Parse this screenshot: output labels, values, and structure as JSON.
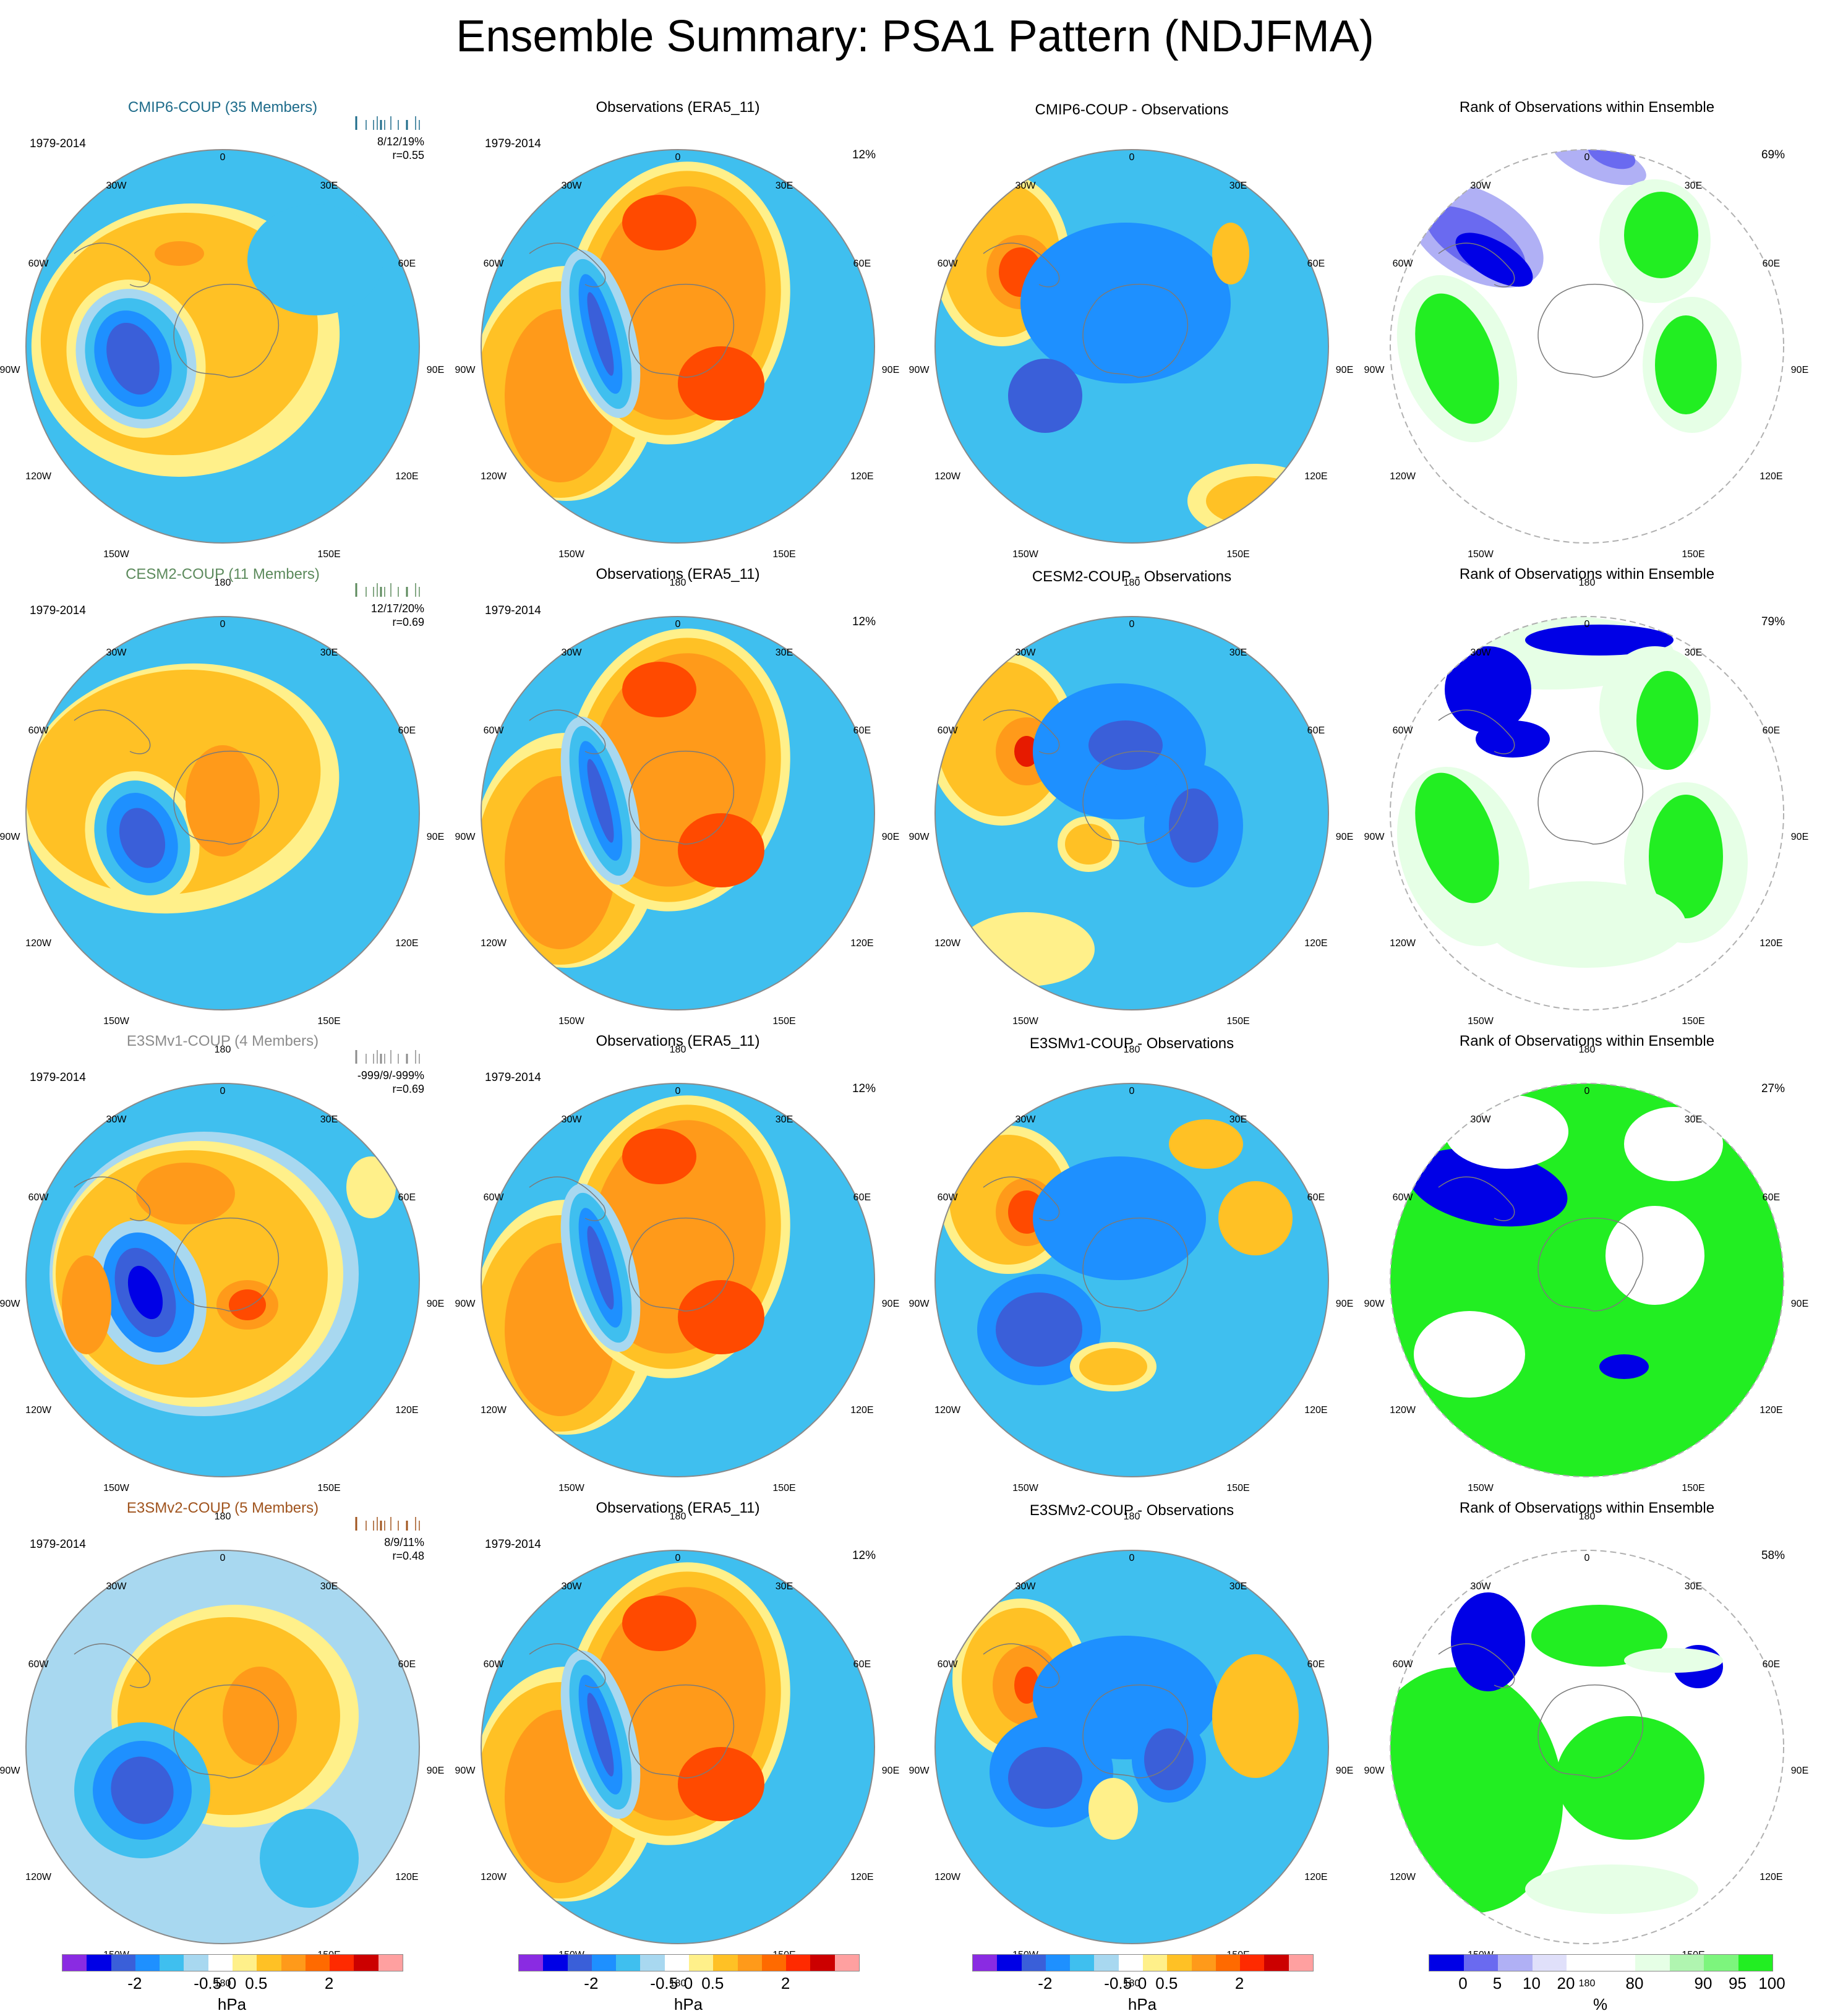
{
  "figure": {
    "title": "Ensemble Summary: PSA1 Pattern (NDJFMA)"
  },
  "rows": [
    {
      "model_title": "CMIP6-COUP (35 Members)",
      "model_color": "#1d6b8a",
      "period": "1979-2014",
      "stats_line1": "8/12/19%",
      "stats_line2": "r=0.55",
      "obs_title": "Observations (ERA5_11)",
      "obs_period": "1979-2014",
      "obs_pct": "12%",
      "diff_title": "CMIP6-COUP - Observations",
      "rank_title": "Rank of Observations within Ensemble",
      "rank_pct": "69%"
    },
    {
      "model_title": "CESM2-COUP (11 Members)",
      "model_color": "#5c8a5c",
      "period": "1979-2014",
      "stats_line1": "12/17/20%",
      "stats_line2": "r=0.69",
      "obs_title": "Observations (ERA5_11)",
      "obs_period": "1979-2014",
      "obs_pct": "12%",
      "diff_title": "CESM2-COUP - Observations",
      "rank_title": "Rank of Observations within Ensemble",
      "rank_pct": "79%"
    },
    {
      "model_title": "E3SMv1-COUP (4 Members)",
      "model_color": "#8c8c8c",
      "period": "1979-2014",
      "stats_line1": "-999/9/-999%",
      "stats_line2": "r=0.69",
      "obs_title": "Observations (ERA5_11)",
      "obs_period": "1979-2014",
      "obs_pct": "12%",
      "diff_title": "E3SMv1-COUP - Observations",
      "rank_title": "Rank of Observations within Ensemble",
      "rank_pct": "27%"
    },
    {
      "model_title": "E3SMv2-COUP (5 Members)",
      "model_color": "#a0541e",
      "period": "1979-2014",
      "stats_line1": "8/9/11%",
      "stats_line2": "r=0.48",
      "obs_title": "Observations (ERA5_11)",
      "obs_period": "1979-2014",
      "obs_pct": "12%",
      "diff_title": "E3SMv2-COUP - Observations",
      "rank_title": "Rank of Observations within Ensemble",
      "rank_pct": "58%"
    }
  ],
  "lon_labels": {
    "top": "0",
    "ne": "30E",
    "ene": "60E",
    "e": "90E",
    "ese": "120E",
    "se": "150E",
    "bottom": "180",
    "sw": "150W",
    "wsw": "120W",
    "w": "90W",
    "wnw": "60W",
    "nw": "30W"
  },
  "colorbar_hpa": {
    "colors": [
      "#8a2be2",
      "#0000e6",
      "#3a5fd9",
      "#1e90ff",
      "#3fbfef",
      "#a8d8f0",
      "#ffffff",
      "#fff08a",
      "#ffc125",
      "#ff9a1a",
      "#ff6a00",
      "#ff2a00",
      "#cc0000",
      "#ffa0a0"
    ],
    "tick_labels": [
      "-2",
      "-0.5",
      "0",
      "0.5",
      "2"
    ],
    "unit": "hPa"
  },
  "colorbar_rank": {
    "colors": [
      "#0000e6",
      "#6a6af0",
      "#b0b0f5",
      "#e0e0fa",
      "#ffffff",
      "#ffffff",
      "#e6ffe6",
      "#b0f5b0",
      "#7df57d",
      "#22ee22"
    ],
    "tick_labels": [
      "0",
      "5",
      "10",
      "20",
      "%",
      "80",
      "90",
      "95",
      "100"
    ],
    "unit": "%"
  }
}
